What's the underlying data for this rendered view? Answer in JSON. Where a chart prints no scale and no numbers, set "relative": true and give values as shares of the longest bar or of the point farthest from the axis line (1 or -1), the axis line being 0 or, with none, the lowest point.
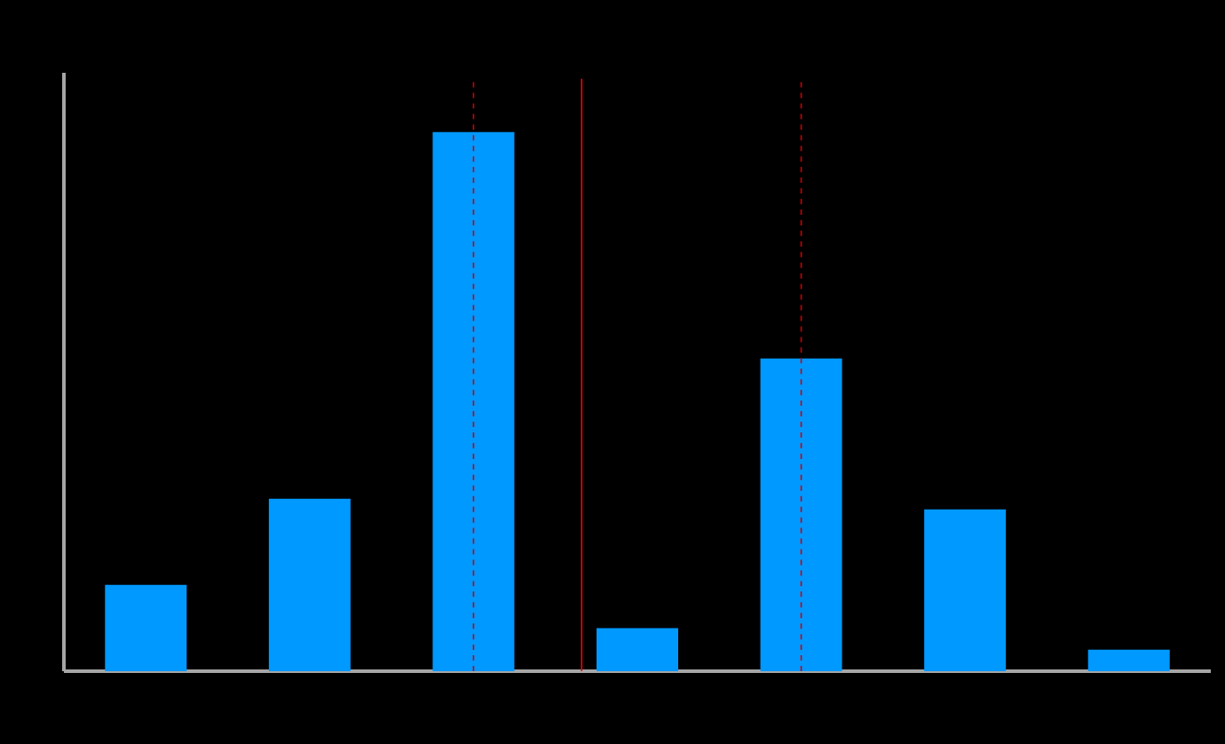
{
  "chart_data": {
    "type": "bar",
    "relative": true,
    "categories": [
      null,
      null,
      null,
      null,
      null,
      null,
      null
    ],
    "values": [
      0.16,
      0.32,
      1,
      0.08,
      0.58,
      0.3,
      0.04
    ],
    "color": "#0099ff"
  }
}
